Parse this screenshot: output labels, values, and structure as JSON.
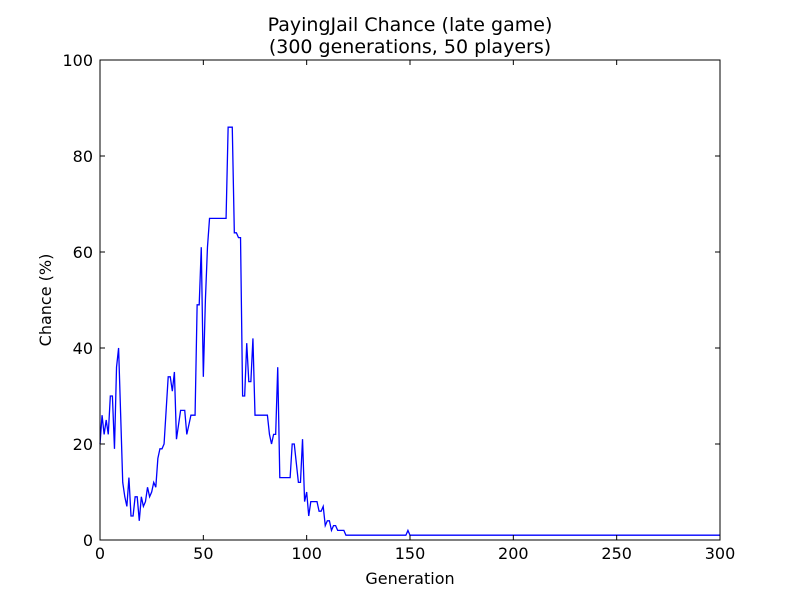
{
  "chart_data": {
    "type": "line",
    "title": "PayingJail Chance (late game)",
    "subtitle": "(300 generations, 50 players)",
    "xlabel": "Generation",
    "ylabel": "Chance (%)",
    "xlim": [
      0,
      300
    ],
    "ylim": [
      0,
      100
    ],
    "xticks": [
      "0",
      "50",
      "100",
      "150",
      "200",
      "250",
      "300"
    ],
    "yticks": [
      "0",
      "20",
      "40",
      "60",
      "80",
      "100"
    ],
    "grid": false,
    "line_color": "#0000ff",
    "x": [
      0,
      1,
      2,
      3,
      4,
      5,
      6,
      7,
      8,
      9,
      10,
      11,
      12,
      13,
      14,
      15,
      16,
      17,
      18,
      19,
      20,
      21,
      22,
      23,
      24,
      25,
      26,
      27,
      28,
      29,
      30,
      31,
      32,
      33,
      34,
      35,
      36,
      37,
      38,
      39,
      40,
      41,
      42,
      43,
      44,
      45,
      46,
      47,
      48,
      49,
      50,
      51,
      52,
      53,
      54,
      55,
      56,
      57,
      58,
      59,
      60,
      61,
      62,
      63,
      64,
      65,
      66,
      67,
      68,
      69,
      70,
      71,
      72,
      73,
      74,
      75,
      76,
      77,
      78,
      79,
      80,
      81,
      82,
      83,
      84,
      85,
      86,
      87,
      88,
      89,
      90,
      91,
      92,
      93,
      94,
      95,
      96,
      97,
      98,
      99,
      100,
      101,
      102,
      103,
      104,
      105,
      106,
      107,
      108,
      109,
      110,
      111,
      112,
      113,
      114,
      115,
      116,
      117,
      118,
      119,
      120,
      130,
      140,
      145,
      147,
      148,
      149,
      150,
      160,
      200,
      250,
      300
    ],
    "y": [
      20,
      26,
      22,
      25,
      22,
      30,
      30,
      19,
      36,
      40,
      26,
      12,
      9,
      7,
      13,
      5,
      5,
      9,
      9,
      4,
      9,
      7,
      8,
      11,
      9,
      10,
      12,
      11,
      17,
      19,
      19,
      20,
      27,
      34,
      34,
      31,
      35,
      21,
      24,
      27,
      27,
      27,
      22,
      24,
      26,
      26,
      26,
      49,
      49,
      61,
      34,
      50,
      61,
      67,
      67,
      67,
      67,
      67,
      67,
      67,
      67,
      67,
      86,
      86,
      86,
      64,
      64,
      63,
      63,
      30,
      30,
      41,
      33,
      33,
      42,
      26,
      26,
      26,
      26,
      26,
      26,
      26,
      22,
      20,
      22,
      22,
      36,
      13,
      13,
      13,
      13,
      13,
      13,
      20,
      20,
      16,
      12,
      12,
      21,
      8,
      10,
      5,
      8,
      8,
      8,
      8,
      6,
      6,
      7,
      3,
      4,
      4,
      2,
      3,
      3,
      2,
      2,
      2,
      2,
      1,
      1,
      1,
      1,
      1,
      1,
      1,
      2,
      1,
      1,
      1,
      1,
      1
    ]
  }
}
